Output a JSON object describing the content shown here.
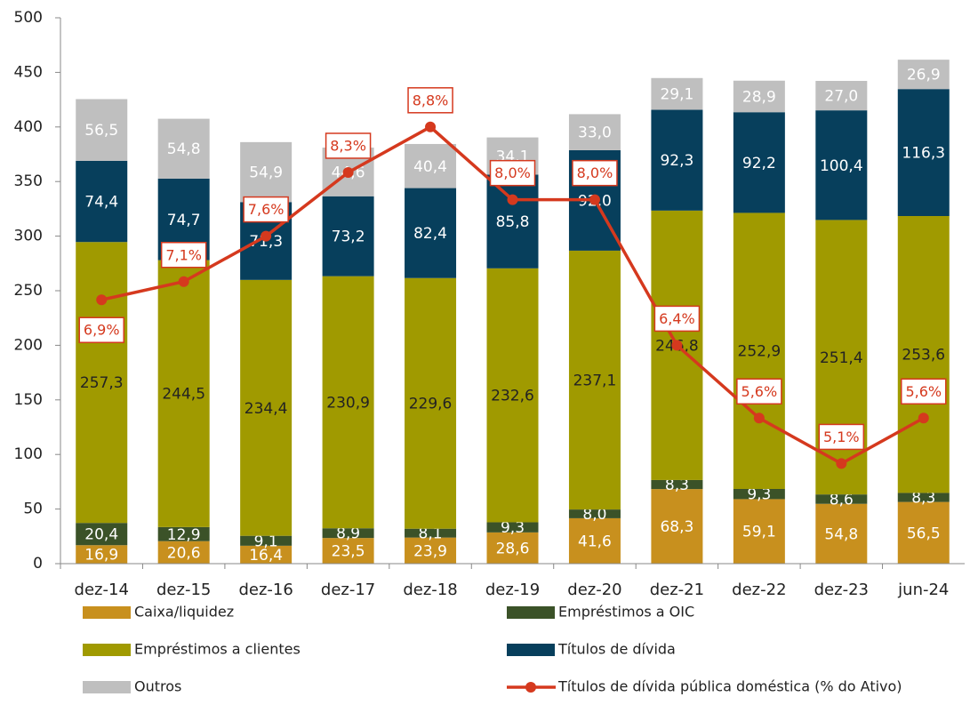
{
  "chart_data": {
    "type": "bar",
    "stacked": true,
    "categories": [
      "dez-14",
      "dez-15",
      "dez-16",
      "dez-17",
      "dez-18",
      "dez-19",
      "dez-20",
      "dez-21",
      "dez-22",
      "dez-23",
      "jun-24"
    ],
    "series": [
      {
        "name": "Caixa/liquidez",
        "color": "#c8901e",
        "values": [
          16.9,
          20.6,
          16.4,
          23.5,
          23.9,
          28.6,
          41.6,
          68.3,
          59.1,
          54.8,
          56.5
        ],
        "value_labels": [
          "16,9",
          "20,6",
          "16,4",
          "23,5",
          "23,9",
          "28,6",
          "41,6",
          "68,3",
          "59,1",
          "54,8",
          "56,5"
        ]
      },
      {
        "name": "Empréstimos a OIC",
        "color": "#3b5228",
        "values": [
          20.4,
          12.9,
          9.1,
          8.9,
          8.1,
          9.3,
          8.0,
          8.3,
          9.3,
          8.6,
          8.3
        ],
        "value_labels": [
          "20,4",
          "12,9",
          "9,1",
          "8,9",
          "8,1",
          "9,3",
          "8,0",
          "8,3",
          "9,3",
          "8,6",
          "8,3"
        ]
      },
      {
        "name": "Empréstimos a clientes",
        "color": "#a09a00",
        "values": [
          257.3,
          244.5,
          234.4,
          230.9,
          229.6,
          232.6,
          237.1,
          246.8,
          252.9,
          251.4,
          253.6
        ],
        "value_labels": [
          "257,3",
          "244,5",
          "234,4",
          "230,9",
          "229,6",
          "232,6",
          "237,1",
          "246,8",
          "252,9",
          "251,4",
          "253,6"
        ]
      },
      {
        "name": "Títulos de dívida",
        "color": "#073f5c",
        "values": [
          74.4,
          74.7,
          71.3,
          73.2,
          82.4,
          85.8,
          92.0,
          92.3,
          92.2,
          100.4,
          116.3
        ],
        "value_labels": [
          "74,4",
          "74,7",
          "71,3",
          "73,2",
          "82,4",
          "85,8",
          "92,0",
          "92,3",
          "92,2",
          "100,4",
          "116,3"
        ]
      },
      {
        "name": "Outros",
        "color": "#bfbfbf",
        "values": [
          56.5,
          54.8,
          54.9,
          44.6,
          40.4,
          34.1,
          33.0,
          29.1,
          28.9,
          27.0,
          26.9
        ],
        "value_labels": [
          "56,5",
          "54,8",
          "54,9",
          "44,6",
          "40,4",
          "34,1",
          "33,0",
          "29,1",
          "28,9",
          "27,0",
          "26,9"
        ]
      },
      {
        "name": "Títulos de dívida pública doméstica (% do Ativo)",
        "type": "line",
        "axis": "y2",
        "color": "#d5391e",
        "values": [
          6.9,
          7.1,
          7.6,
          8.3,
          8.8,
          8.0,
          8.0,
          6.4,
          5.6,
          5.1,
          5.6
        ],
        "value_labels": [
          "6,9%",
          "7,1%",
          "7,6%",
          "8,3%",
          "8,8%",
          "8,0%",
          "8,0%",
          "6,4%",
          "5,6%",
          "5,1%",
          "5,6%"
        ]
      }
    ],
    "ylim": [
      0,
      500
    ],
    "yticks": [
      0,
      50,
      100,
      150,
      200,
      250,
      300,
      350,
      400,
      450,
      500
    ],
    "y2lim": [
      4,
      10
    ]
  }
}
